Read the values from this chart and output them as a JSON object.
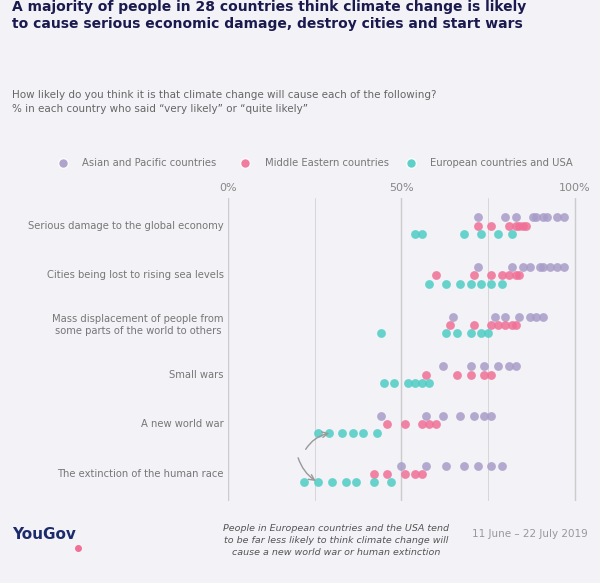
{
  "title_line1": "A majority of people in 28 countries think climate change is likely",
  "title_line2": "to cause serious economic damage, destroy cities and start wars",
  "subtitle": "How likely do you think it is that climate change will cause each of the following?\n% in each country who said “very likely” or “quite likely”",
  "categories": [
    "Serious damage to the global economy",
    "Cities being lost to rising sea levels",
    "Mass displacement of people from\nsome parts of the world to others",
    "Small wars",
    "A new world war",
    "The extinction of the human race"
  ],
  "legend_labels": [
    "Asian and Pacific countries",
    "Middle Eastern countries",
    "European countries and USA"
  ],
  "colors": {
    "asian": "#a89cc8",
    "middle_east": "#f07096",
    "european": "#4ecdc4"
  },
  "bg_color": "#f2f2f7",
  "annotation_text": "People in European countries and the USA tend\nto be far less likely to think climate change will\ncause a new world war or human extinction",
  "date_text": "11 June – 22 July 2019",
  "data": {
    "Serious damage to the global economy": {
      "asian": [
        72,
        80,
        83,
        88,
        89,
        91,
        92,
        95,
        97
      ],
      "middle_east": [
        72,
        76,
        81,
        83,
        84,
        85,
        86
      ],
      "european": [
        54,
        56,
        68,
        73,
        78,
        82
      ]
    },
    "Cities being lost to rising sea levels": {
      "asian": [
        72,
        82,
        85,
        87,
        90,
        91,
        93,
        95,
        97
      ],
      "middle_east": [
        60,
        71,
        76,
        79,
        81,
        83,
        84
      ],
      "european": [
        58,
        63,
        67,
        70,
        73,
        76,
        79
      ]
    },
    "Mass displacement of people from\nsome parts of the world to others": {
      "asian": [
        65,
        77,
        80,
        84,
        87,
        89,
        91
      ],
      "middle_east": [
        64,
        71,
        76,
        78,
        80,
        82,
        83
      ],
      "european": [
        44,
        63,
        66,
        70,
        73,
        75
      ]
    },
    "Small wars": {
      "asian": [
        62,
        70,
        74,
        78,
        81,
        83
      ],
      "middle_east": [
        57,
        66,
        70,
        74,
        76
      ],
      "european": [
        45,
        48,
        52,
        54,
        56,
        58
      ]
    },
    "A new world war": {
      "asian": [
        44,
        57,
        62,
        67,
        71,
        74,
        76
      ],
      "middle_east": [
        46,
        51,
        56,
        58,
        60
      ],
      "european": [
        26,
        29,
        33,
        36,
        39,
        43
      ]
    },
    "The extinction of the human race": {
      "asian": [
        50,
        57,
        63,
        68,
        72,
        76,
        79
      ],
      "middle_east": [
        42,
        46,
        51,
        54,
        56
      ],
      "european": [
        22,
        26,
        30,
        34,
        37,
        42,
        47
      ]
    }
  }
}
